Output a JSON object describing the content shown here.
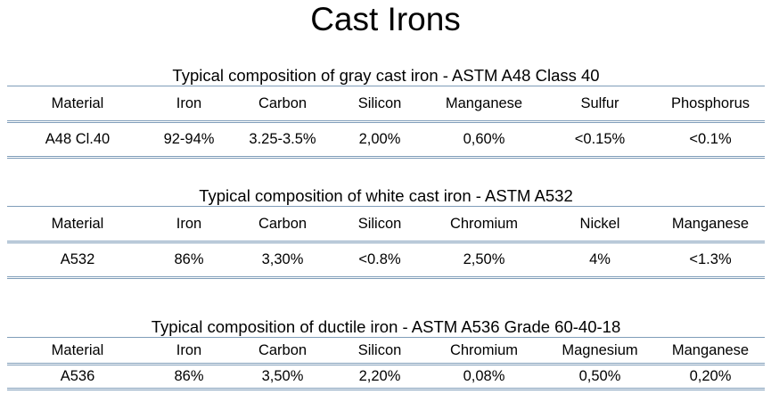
{
  "title": "Cast Irons",
  "sections": [
    {
      "title": "Typical composition of gray cast iron  - ASTM A48 Class 40",
      "headers": [
        "Material",
        "Iron",
        "Carbon",
        "Silicon",
        "Manganese",
        "Sulfur",
        "Phosphorus"
      ],
      "row": [
        "A48 Cl.40",
        "92-94%",
        "3.25-3.5%",
        "2,00%",
        "0,60%",
        "<0.15%",
        "<0.1%"
      ]
    },
    {
      "title": "Typical composition of white cast iron  - ASTM A532",
      "headers": [
        "Material",
        "Iron",
        "Carbon",
        "Silicon",
        "Chromium",
        "Nickel",
        "Manganese"
      ],
      "row": [
        "A532",
        "86%",
        "3,30%",
        "<0.8%",
        "2,50%",
        "4%",
        "<1.3%"
      ]
    },
    {
      "title": "Typical composition of ductile iron  - ASTM A536 Grade 60-40-18",
      "headers": [
        "Material",
        "Iron",
        "Carbon",
        "Silicon",
        "Chromium",
        "Magnesium",
        "Manganese"
      ],
      "row": [
        "A536",
        "86%",
        "3,50%",
        "2,20%",
        "0,08%",
        "0,50%",
        "0,20%"
      ]
    }
  ]
}
